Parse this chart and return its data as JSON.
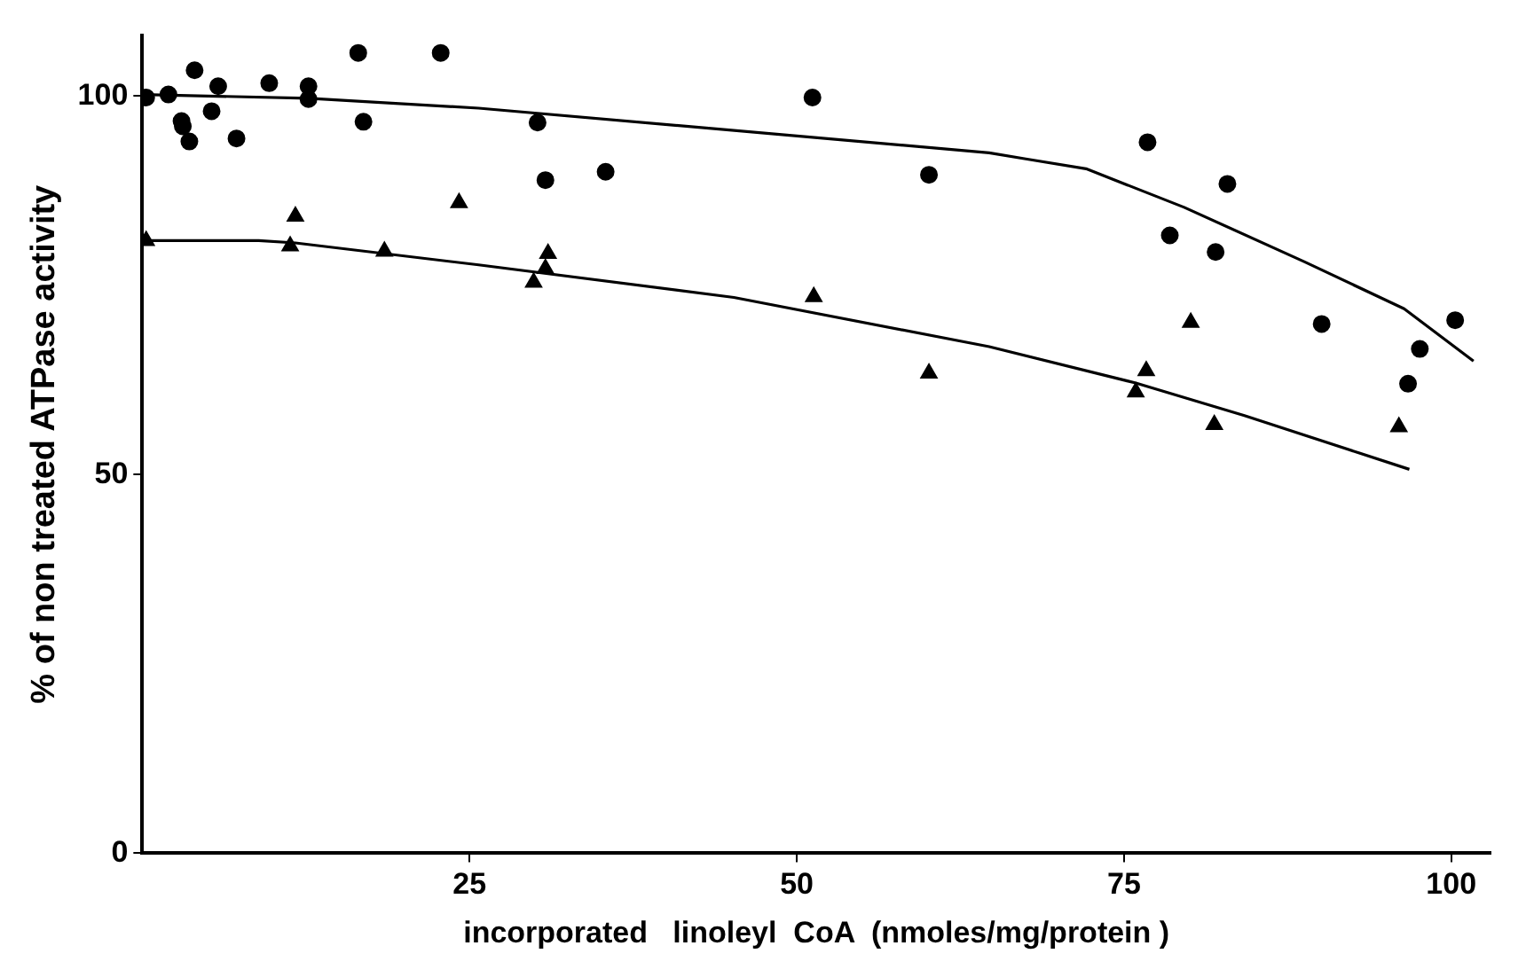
{
  "chart_data": {
    "type": "scatter",
    "xlabel": "incorporated   linoleyl  CoA  (nmoles/mg/protein )",
    "ylabel": "% of non treated ATPase activity",
    "xlim": [
      0,
      103
    ],
    "xticks": [
      25,
      50,
      75,
      100
    ],
    "ylim": [
      0,
      108
    ],
    "yticks": [
      0,
      50,
      100
    ],
    "grid": false,
    "legend": false,
    "series": [
      {
        "type": "scatter",
        "marker": "circle",
        "color": "#000000",
        "x": [
          0.3,
          2.0,
          4.0,
          5.8,
          5.3,
          3.0,
          3.1,
          3.6,
          7.2,
          9.7,
          12.7,
          12.7,
          16.5,
          22.8,
          16.9,
          30.2,
          30.8,
          35.4,
          51.2,
          60.1,
          76.8,
          82.9,
          78.5,
          82.0,
          90.1,
          100.3,
          97.6,
          96.7
        ],
        "values": [
          99.8,
          100.2,
          103.4,
          101.3,
          98.0,
          96.7,
          96.0,
          94.0,
          94.4,
          101.7,
          101.3,
          99.6,
          105.7,
          105.7,
          96.6,
          96.5,
          88.9,
          90.0,
          99.8,
          89.6,
          93.9,
          88.4,
          81.6,
          79.4,
          69.9,
          70.4,
          66.6,
          62.0
        ]
      },
      {
        "type": "scatter",
        "marker": "triangle",
        "color": "#000000",
        "x": [
          0.3,
          11.7,
          11.3,
          18.5,
          24.2,
          31.0,
          30.8,
          29.9,
          51.3,
          60.1,
          80.1,
          76.7,
          75.9,
          81.9,
          96.0
        ],
        "values": [
          80.9,
          84.1,
          80.2,
          79.5,
          85.9,
          79.2,
          77.2,
          75.4,
          73.5,
          63.4,
          70.1,
          63.7,
          60.9,
          56.6,
          56.3
        ]
      },
      {
        "type": "line",
        "marker": "none",
        "line_style": "solid",
        "color": "#000000",
        "x": [
          0,
          12.7,
          25.7,
          64.7,
          67.5,
          72.1,
          79.6,
          88.8,
          96.4,
          101.7
        ],
        "values": [
          100.2,
          99.7,
          98.4,
          92.5,
          91.7,
          90.4,
          85.3,
          78.1,
          71.9,
          65.0
        ]
      },
      {
        "type": "line",
        "marker": "none",
        "line_style": "solid",
        "color": "#000000",
        "x": [
          0,
          8.9,
          11.7,
          25.7,
          45.2,
          64.7,
          75.9,
          84.2,
          96.8
        ],
        "values": [
          80.9,
          80.9,
          80.6,
          77.7,
          73.4,
          66.9,
          62.1,
          57.8,
          50.7
        ]
      }
    ]
  }
}
